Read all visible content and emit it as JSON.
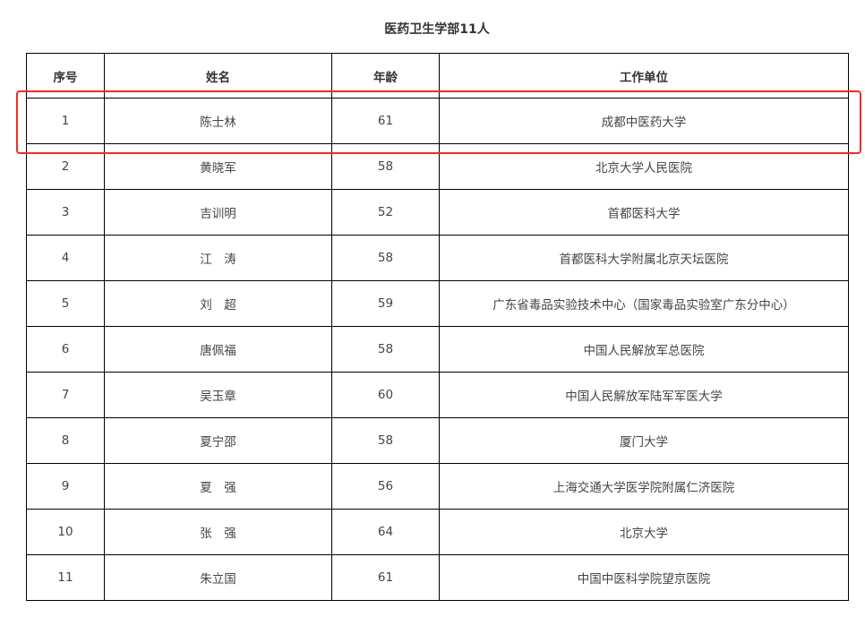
{
  "title": "医药卫生学部11人",
  "table": {
    "headers": [
      "序号",
      "姓名",
      "年龄",
      "工作单位"
    ],
    "rows": [
      [
        "1",
        "陈士林",
        "61",
        "成都中医药大学"
      ],
      [
        "2",
        "黄晓军",
        "58",
        "北京大学人民医院"
      ],
      [
        "3",
        "吉训明",
        "52",
        "首都医科大学"
      ],
      [
        "4",
        "江　涛",
        "58",
        "首都医科大学附属北京天坛医院"
      ],
      [
        "5",
        "刘　超",
        "59",
        "广东省毒品实验技术中心（国家毒品实验室广东分中心）"
      ],
      [
        "6",
        "唐佩福",
        "58",
        "中国人民解放军总医院"
      ],
      [
        "7",
        "吴玉章",
        "60",
        "中国人民解放军陆军军医大学"
      ],
      [
        "8",
        "夏宁邵",
        "58",
        "厦门大学"
      ],
      [
        "9",
        "夏　强",
        "56",
        "上海交通大学医学院附属仁济医院"
      ],
      [
        "10",
        "张　强",
        "64",
        "北京大学"
      ],
      [
        "11",
        "朱立国",
        "61",
        "中国中医科学院望京医院"
      ]
    ]
  },
  "highlight": {
    "color": "#ee2b24",
    "row": 1
  }
}
